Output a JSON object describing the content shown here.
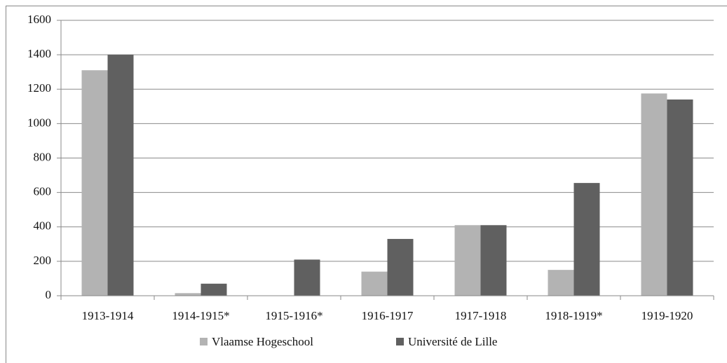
{
  "chart_data": {
    "type": "bar",
    "categories": [
      "1913-1914",
      "1914-1915*",
      "1915-1916*",
      "1916-1917",
      "1917-1918",
      "1918-1919*",
      "1919-1920"
    ],
    "series": [
      {
        "name": "Vlaamse Hogeschool",
        "color": "#b3b3b3",
        "values": [
          1310,
          15,
          0,
          140,
          410,
          150,
          1175
        ]
      },
      {
        "name": "Université de Lille",
        "color": "#606060",
        "values": [
          1400,
          70,
          210,
          330,
          410,
          655,
          1140
        ]
      }
    ],
    "ylim": [
      0,
      1600
    ],
    "yticks": [
      0,
      200,
      400,
      600,
      800,
      1000,
      1200,
      1400,
      1600
    ],
    "grid": true,
    "legend": "bottom"
  }
}
